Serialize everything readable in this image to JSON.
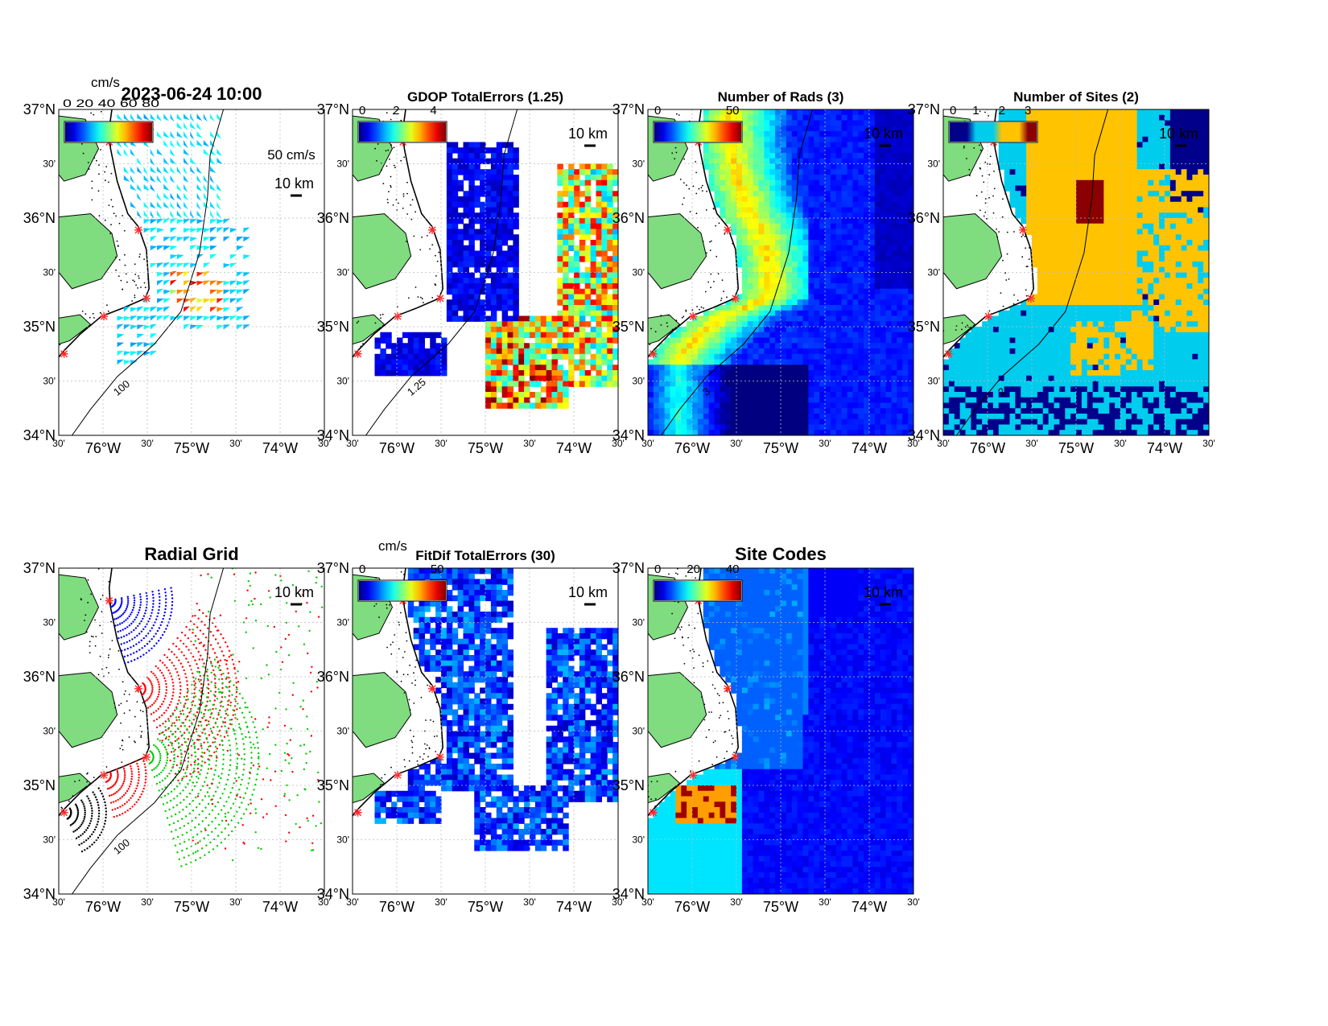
{
  "figure_time": "2023-06-24 10:00",
  "axes": {
    "lat_labels": [
      "37°N",
      "30'",
      "36°N",
      "30'",
      "35°N",
      "30'",
      "34°N"
    ],
    "lon_labels": [
      "30'",
      "76°W",
      "30'",
      "75°W",
      "30'",
      "74°W",
      "30'"
    ]
  },
  "colors": {
    "land": "#7fdc7f",
    "coast": "#000000",
    "site_marker": "#ff2a2a",
    "contour": "#000000"
  },
  "panels": [
    {
      "id": "currents",
      "title": "2023-06-24 10:00",
      "cbar_unit": "cm/s",
      "cbar_ticks": [],
      "cbar_overlap_text": "0 20 40 60 80",
      "scale_text": "50 cm/s",
      "km_label": "10 km",
      "contour_label": "100",
      "kind": "vectors"
    },
    {
      "id": "gdop",
      "title": "GDOP TotalErrors (1.25)",
      "cbar_unit": "",
      "cbar_ticks": [
        "0",
        "2",
        "4"
      ],
      "km_label": "10 km",
      "contour_label": "1.25",
      "kind": "field"
    },
    {
      "id": "nrads",
      "title": "Number of Rads (3)",
      "cbar_unit": "",
      "cbar_ticks": [
        "0",
        "50"
      ],
      "km_label": "10 km",
      "contour_label": "3",
      "kind": "field"
    },
    {
      "id": "nsites",
      "title": "Number of Sites (2)",
      "cbar_unit": "",
      "cbar_ticks": [
        "0",
        "1",
        "2",
        "3"
      ],
      "km_label": "10 km",
      "contour_label": "2",
      "kind": "field"
    },
    {
      "id": "radgrid",
      "title": "Radial Grid",
      "cbar_unit": "",
      "cbar_ticks": [],
      "km_label": "10 km",
      "contour_label": "100",
      "kind": "dots"
    },
    {
      "id": "fitdif",
      "title": "FitDif TotalErrors (30)",
      "cbar_unit": "cm/s",
      "cbar_ticks": [
        "0",
        "50"
      ],
      "km_label": "10 km",
      "contour_label": "",
      "kind": "field"
    },
    {
      "id": "sitecodes",
      "title": "Site Codes",
      "cbar_unit": "",
      "cbar_ticks": [
        "0",
        "20",
        "40"
      ],
      "km_label": "10 km",
      "contour_label": "",
      "kind": "field"
    }
  ]
}
